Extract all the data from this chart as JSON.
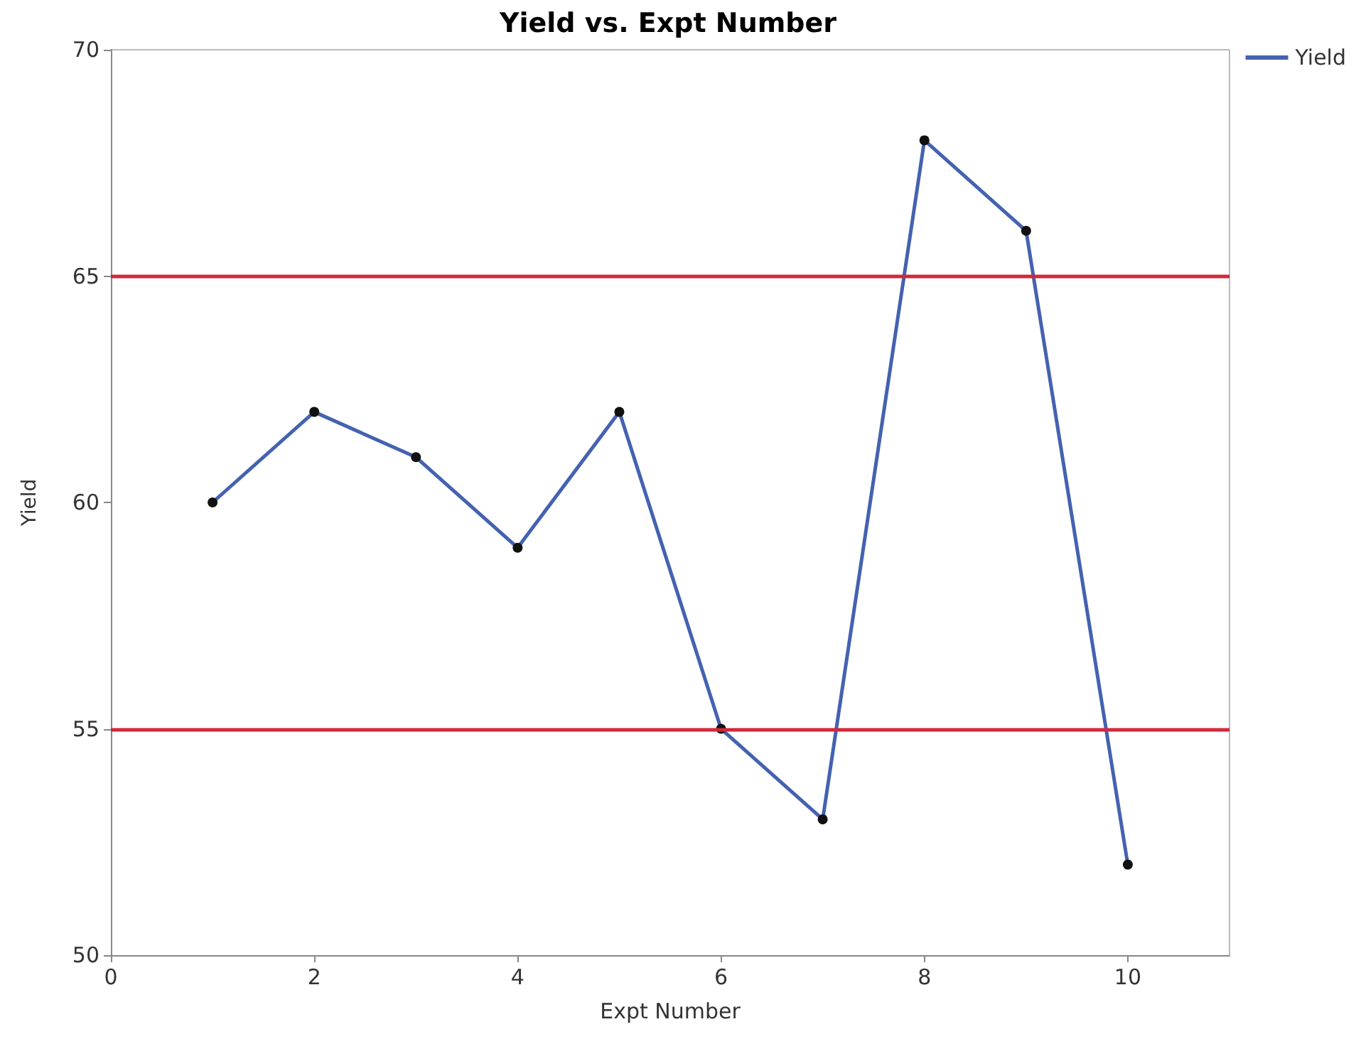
{
  "chart_data": {
    "type": "line",
    "title": "Yield vs. Expt Number",
    "xlabel": "Expt Number",
    "ylabel": "Yield",
    "x": [
      1,
      2,
      3,
      4,
      5,
      6,
      7,
      8,
      9,
      10
    ],
    "series": [
      {
        "name": "Yield",
        "color": "#4462b0",
        "values": [
          60,
          62,
          61,
          59,
          62,
          55,
          53,
          68,
          66,
          52
        ]
      }
    ],
    "xlim": [
      0,
      11
    ],
    "xticks": [
      0,
      2,
      4,
      6,
      8,
      10
    ],
    "ylim": [
      50,
      70
    ],
    "yticks": [
      50,
      55,
      60,
      65,
      70
    ],
    "ref_lines": [
      {
        "axis": "y",
        "value": 65,
        "color": "#d0283c"
      },
      {
        "axis": "y",
        "value": 55,
        "color": "#d0283c"
      }
    ],
    "grid": false,
    "legend": "top right",
    "marker": "circle",
    "line_style": "solid"
  }
}
